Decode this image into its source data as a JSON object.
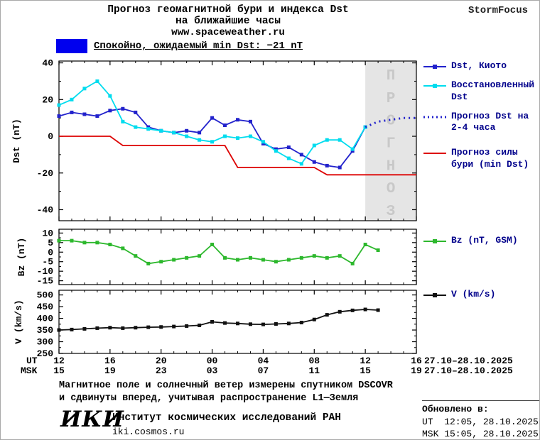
{
  "header": {
    "title_line1": "Прогноз геомагнитной бури и индекса Dst",
    "title_line2": "на ближайшие часы",
    "site": "www.spaceweather.ru",
    "brand": "StormFocus"
  },
  "status": {
    "label": "Спокойно, ожидаемый min Dst: −21 nT",
    "swatch_color": "#0000ee"
  },
  "chart_data": [
    {
      "type": "line",
      "ylabel": "Dst (nT)",
      "xlabel": "",
      "ylim": [
        -46,
        41
      ],
      "yticks": [
        40,
        20,
        0,
        -20,
        -40
      ],
      "xlim": [
        0,
        28
      ],
      "xticks": [
        0,
        4,
        8,
        12,
        16,
        20,
        24,
        28
      ],
      "x_unit": "hours since 12:00 UT 27.10.2025",
      "legend_position": "right",
      "grid": false,
      "forecast_region": {
        "x_start": 24,
        "x_end": 28,
        "label": "ПРОГНОЗ"
      },
      "series": [
        {
          "name": "Dst, Киото",
          "color": "#2222cc",
          "style": "solid",
          "marker": "square",
          "x": [
            0,
            1,
            2,
            3,
            4,
            5,
            6,
            7,
            8,
            9,
            10,
            11,
            12,
            13,
            14,
            15,
            16,
            17,
            18,
            19,
            20,
            21,
            22,
            23,
            24
          ],
          "values": [
            11,
            13,
            12,
            11,
            14,
            15,
            13,
            5,
            3,
            2,
            3,
            2,
            10,
            6,
            9,
            8,
            -4,
            -7,
            -6,
            -10,
            -14,
            -16,
            -17,
            -8,
            5
          ]
        },
        {
          "name": "Восстановленный Dst",
          "color": "#00dcee",
          "style": "solid",
          "marker": "square",
          "x": [
            0,
            1,
            2,
            3,
            4,
            5,
            6,
            7,
            8,
            9,
            10,
            11,
            12,
            13,
            14,
            15,
            16,
            17,
            18,
            19,
            20,
            21,
            22,
            23,
            24
          ],
          "values": [
            17,
            20,
            26,
            30,
            22,
            8,
            5,
            4,
            3,
            2,
            0,
            -2,
            -3,
            0,
            -1,
            0,
            -3,
            -8,
            -12,
            -15,
            -5,
            -2,
            -2,
            -7,
            5
          ]
        },
        {
          "name": "Прогноз Dst на 2-4 часа",
          "color": "#2222cc",
          "style": "dotted",
          "marker": null,
          "x": [
            24,
            25,
            26,
            27,
            28
          ],
          "values": [
            5,
            8,
            9,
            10,
            10
          ]
        },
        {
          "name": "Прогноз силы бури (min Dst)",
          "color": "#dd0000",
          "style": "solid",
          "marker": null,
          "x": [
            0,
            1,
            2,
            3,
            4,
            5,
            6,
            7,
            8,
            9,
            10,
            11,
            12,
            13,
            14,
            15,
            16,
            17,
            18,
            19,
            20,
            21,
            22,
            23,
            24,
            25,
            26,
            27,
            28
          ],
          "values": [
            0,
            0,
            0,
            0,
            0,
            -5,
            -5,
            -5,
            -5,
            -5,
            -5,
            -5,
            -5,
            -5,
            -17,
            -17,
            -17,
            -17,
            -17,
            -17,
            -17,
            -21,
            -21,
            -21,
            -21,
            -21,
            -21,
            -21,
            -21
          ]
        }
      ]
    },
    {
      "type": "line",
      "ylabel": "Bz (nT)",
      "xlabel": "",
      "ylim": [
        -17,
        12
      ],
      "yticks": [
        10,
        5,
        0,
        -5,
        -10,
        -15
      ],
      "xlim": [
        0,
        28
      ],
      "xticks": [
        0,
        4,
        8,
        12,
        16,
        20,
        24,
        28
      ],
      "legend_position": "right",
      "grid": false,
      "series": [
        {
          "name": "Bz (nT, GSM)",
          "color": "#2db82d",
          "style": "solid",
          "marker": "square",
          "x": [
            0,
            1,
            2,
            3,
            4,
            5,
            6,
            7,
            8,
            9,
            10,
            11,
            12,
            13,
            14,
            15,
            16,
            17,
            18,
            19,
            20,
            21,
            22,
            23,
            24,
            25
          ],
          "values": [
            6,
            6,
            5,
            5,
            4,
            2,
            -2,
            -6,
            -5,
            -4,
            -3,
            -2,
            4,
            -3,
            -4,
            -3,
            -4,
            -5,
            -4,
            -3,
            -2,
            -3,
            -2,
            -6,
            4,
            1
          ]
        }
      ]
    },
    {
      "type": "line",
      "ylabel": "V (km/s)",
      "xlabel": "",
      "ylim": [
        250,
        520
      ],
      "yticks": [
        500,
        450,
        400,
        350,
        300,
        250
      ],
      "xlim": [
        0,
        28
      ],
      "xticks": [
        0,
        4,
        8,
        12,
        16,
        20,
        24,
        28
      ],
      "legend_position": "right",
      "grid": false,
      "series": [
        {
          "name": "V (km/s)",
          "color": "#111111",
          "style": "solid",
          "marker": "square",
          "x": [
            0,
            1,
            2,
            3,
            4,
            5,
            6,
            7,
            8,
            9,
            10,
            11,
            12,
            13,
            14,
            15,
            16,
            17,
            18,
            19,
            20,
            21,
            22,
            23,
            24,
            25
          ],
          "values": [
            350,
            352,
            355,
            358,
            360,
            358,
            360,
            362,
            363,
            365,
            367,
            370,
            385,
            380,
            378,
            375,
            374,
            376,
            378,
            382,
            395,
            415,
            428,
            434,
            438,
            435
          ]
        }
      ]
    }
  ],
  "xaxis": {
    "ut_label": "UT",
    "msk_label": "MSK",
    "ut_ticks": [
      "12",
      "16",
      "20",
      "00",
      "04",
      "08",
      "12",
      "16"
    ],
    "msk_ticks": [
      "15",
      "19",
      "23",
      "03",
      "07",
      "11",
      "15",
      "19"
    ],
    "ut_date_range": "27.10–28.10.2025",
    "msk_date_range": "27.10–28.10.2025"
  },
  "footer": {
    "note_line1": "Магнитное поле и солнечный ветер измерены спутником DSCOVR",
    "note_line2": "и сдвинуты вперед, учитывая распространение L1—Земля",
    "logo_text": "ИКИ",
    "institute": "Институт космических исследований РАН",
    "institute_site": "iki.cosmos.ru",
    "updated_label": "Обновлено в:",
    "updated_ut": "UT  12:05, 28.10.2025",
    "updated_msk": "MSK 15:05, 28.10.2025"
  },
  "colors": {
    "dst_kyoto": "#2222cc",
    "dst_restored": "#00dcee",
    "dst_forecast": "#2222cc",
    "storm_forecast": "#dd0000",
    "bz": "#2db82d",
    "v": "#111111",
    "forecast_band": "#e5e5e5",
    "forecast_band_text": "#c8c8c8",
    "legend_text": "#00008b"
  }
}
